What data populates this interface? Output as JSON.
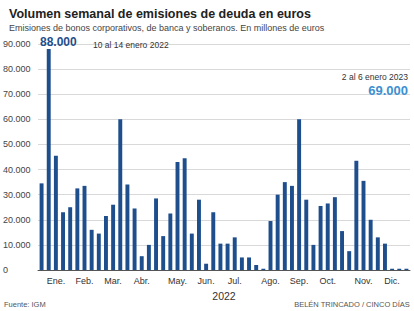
{
  "chart_data": {
    "type": "bar",
    "title": "Volumen semanal de emisiones de deuda en euros",
    "subtitle": "Emisiones de bonos corporativos, de banca y soberanos. En millones de euros",
    "xlabel": "2022",
    "source": "Fuente: IGM",
    "credit": "BELÉN TRINCADO / CINCO DÍAS",
    "annotations": [
      "88.000",
      "10 al 14 enero 2022",
      "2 al 6 enero 2023",
      "69.000"
    ],
    "categories": [
      null,
      null,
      "Ene.",
      null,
      null,
      null,
      "Feb.",
      null,
      null,
      null,
      "Mar.",
      null,
      null,
      null,
      "Abr.",
      null,
      null,
      null,
      null,
      "May.",
      null,
      null,
      null,
      "Jun.",
      null,
      null,
      null,
      "Jul.",
      null,
      null,
      null,
      null,
      "Ago.",
      null,
      null,
      null,
      "Sep.",
      null,
      null,
      null,
      "Oct.",
      null,
      null,
      null,
      null,
      "Nov.",
      null,
      null,
      null,
      "Dic.",
      null,
      null
    ],
    "values": [
      34500,
      88000,
      45500,
      23000,
      25000,
      32500,
      33500,
      16000,
      14500,
      21500,
      26000,
      60000,
      34000,
      24500,
      5500,
      10000,
      28500,
      13500,
      22500,
      43000,
      44500,
      14500,
      28000,
      2500,
      23000,
      10500,
      10500,
      13000,
      5000,
      5000,
      2000,
      500,
      19500,
      30000,
      35000,
      33500,
      60000,
      28000,
      10000,
      25500,
      26500,
      29000,
      15500,
      7500,
      43500,
      35500,
      20000,
      13000,
      10500,
      500,
      500,
      500
    ],
    "color": "#1f4e8c",
    "ylim": [
      0,
      90000
    ],
    "yticks": [
      0,
      {
        "value": 10000,
        "label": "10.000"
      },
      {
        "value": 20000,
        "label": "20.000"
      },
      {
        "value": 30000,
        "label": "30.000"
      },
      {
        "value": 40000,
        "label": "40.000"
      },
      {
        "value": 50000,
        "label": "50.000"
      },
      {
        "value": 60000,
        "label": "60.000"
      },
      {
        "value": 70000,
        "label": "70.000"
      },
      {
        "value": 80000,
        "label": "80.000"
      },
      {
        "value": 90000,
        "label": "90.000"
      }
    ],
    "grid": true
  }
}
